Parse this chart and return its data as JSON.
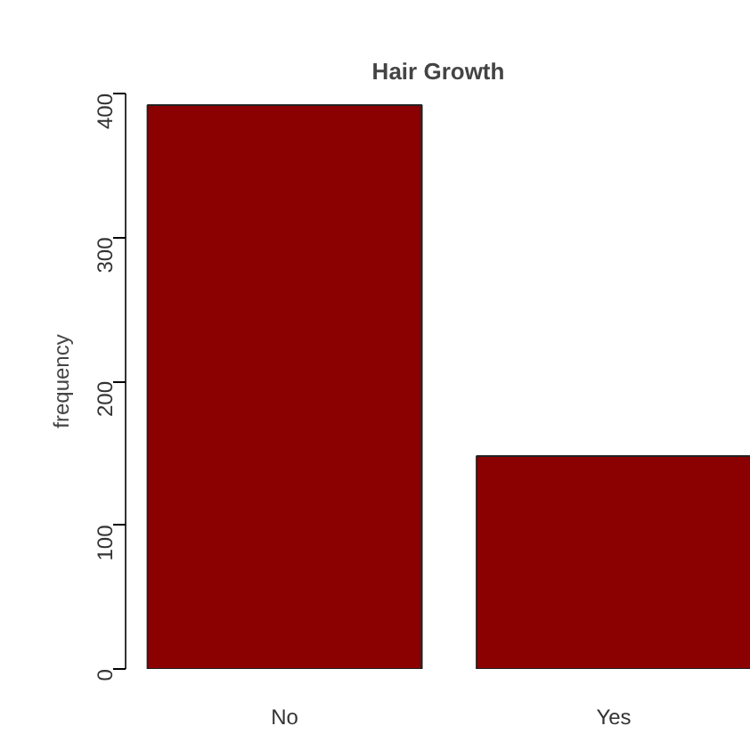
{
  "chart_data": {
    "type": "bar",
    "title": "Hair Growth",
    "ylabel": "frequency",
    "categories": [
      "No",
      "Yes"
    ],
    "values": [
      392,
      148
    ],
    "color": "#8b0000",
    "ylim": [
      0,
      400
    ],
    "yticks": [
      0,
      100,
      200,
      300,
      400
    ],
    "grid": false
  }
}
